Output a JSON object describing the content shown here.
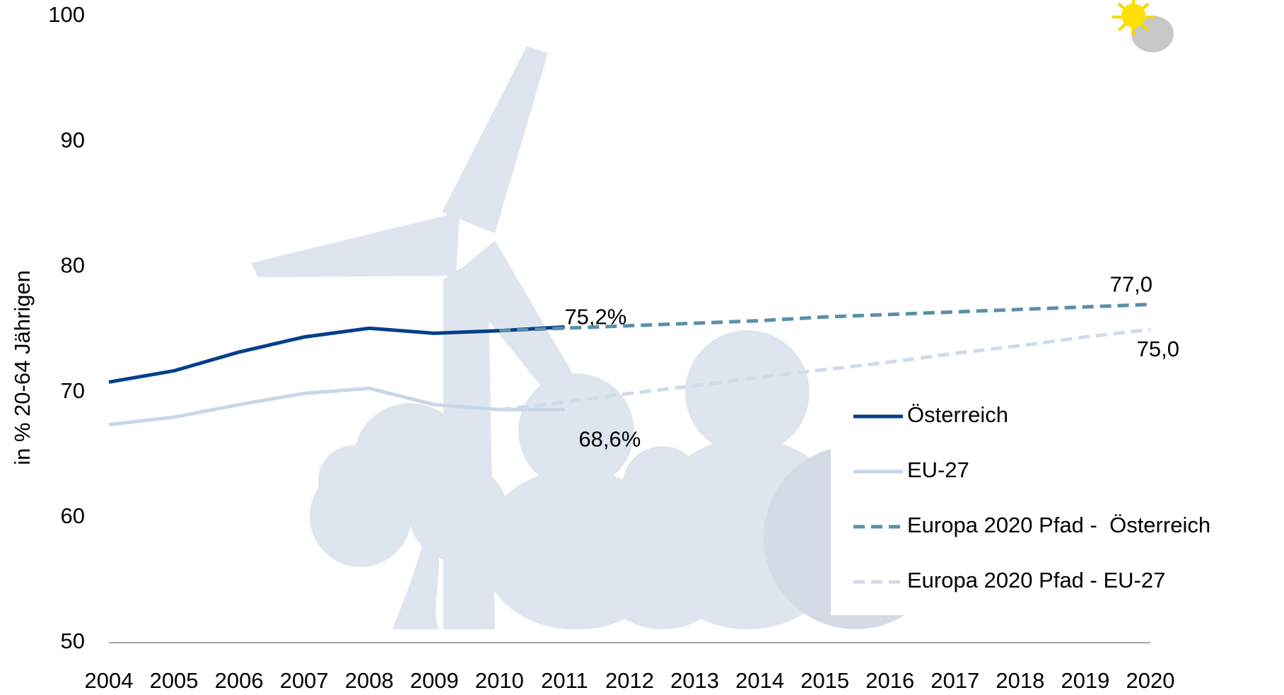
{
  "chart_data": {
    "type": "line",
    "y_label": "in %  20-64 Jährigen",
    "categories": [
      "2004",
      "2005",
      "2006",
      "2007",
      "2008",
      "2009",
      "2010",
      "2011",
      "2012",
      "2013",
      "2014",
      "2015",
      "2016",
      "2017",
      "2018",
      "2019",
      "2020"
    ],
    "ylim": [
      50,
      100
    ],
    "yticks": [
      50,
      60,
      70,
      80,
      90,
      100
    ],
    "legend": "lower right",
    "series": [
      {
        "name": "Österreich",
        "color": "#003f8a",
        "dashed": false,
        "values": [
          70.8,
          71.7,
          73.2,
          74.4,
          75.1,
          74.7,
          74.9,
          75.2,
          null,
          null,
          null,
          null,
          null,
          null,
          null,
          null,
          null
        ],
        "value_labels": [
          null,
          null,
          null,
          null,
          null,
          null,
          null,
          "75,2%",
          null,
          null,
          null,
          null,
          null,
          null,
          null,
          null,
          null
        ]
      },
      {
        "name": "EU-27",
        "color": "#c9d6e6",
        "dashed": false,
        "values": [
          67.4,
          68.0,
          69.0,
          69.9,
          70.3,
          69.0,
          68.6,
          68.6,
          null,
          null,
          null,
          null,
          null,
          null,
          null,
          null,
          null
        ],
        "value_labels": [
          null,
          null,
          null,
          null,
          null,
          null,
          null,
          "68,6%",
          null,
          null,
          null,
          null,
          null,
          null,
          null,
          null,
          null
        ]
      },
      {
        "name": "Europa 2020 Pfad -  Österreich",
        "color": "#5b8fa8",
        "dashed": true,
        "values": [
          null,
          null,
          null,
          null,
          null,
          null,
          74.9,
          75.1,
          75.3,
          75.5,
          75.7,
          76.0,
          76.2,
          76.4,
          76.6,
          76.8,
          77.0
        ],
        "value_labels": [
          null,
          null,
          null,
          null,
          null,
          null,
          null,
          null,
          null,
          null,
          null,
          null,
          null,
          null,
          null,
          null,
          "77,0"
        ]
      },
      {
        "name": "Europa 2020 Pfad - EU-27",
        "color": "#cfdbea",
        "dashed": true,
        "values": [
          null,
          null,
          null,
          null,
          null,
          null,
          68.6,
          69.2,
          69.9,
          70.5,
          71.2,
          71.8,
          72.4,
          73.1,
          73.7,
          74.4,
          75.0
        ],
        "value_labels": [
          null,
          null,
          null,
          null,
          null,
          null,
          null,
          null,
          null,
          null,
          null,
          null,
          null,
          null,
          null,
          null,
          "75,0"
        ]
      }
    ]
  }
}
